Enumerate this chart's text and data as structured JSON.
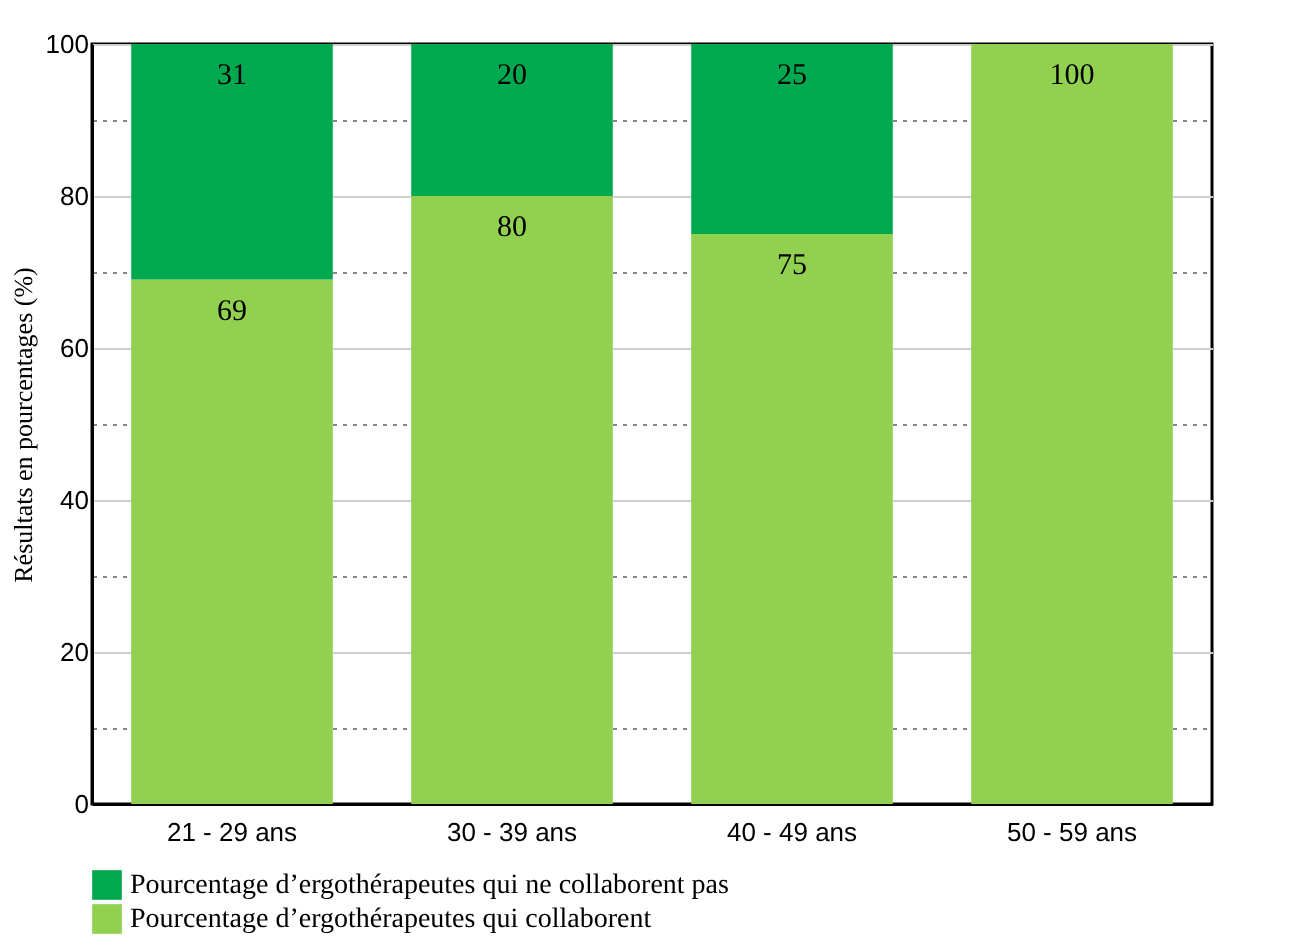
{
  "chart_data": {
    "type": "bar",
    "stacked": true,
    "ylabel": "Résultats en pourcentages (%)",
    "categories": [
      "21 - 29 ans",
      "30 - 39 ans",
      "40 - 49 ans",
      "50 - 59 ans"
    ],
    "series": [
      {
        "name": "Pourcentage d’ergothérapeutes qui collaborent",
        "color": "#92d050",
        "values": [
          69,
          80,
          75,
          100
        ],
        "value_labels": [
          "69",
          "80",
          "75",
          "100"
        ]
      },
      {
        "name": "Pourcentage d’ergothérapeutes qui ne collaborent pas",
        "color": "#00a94f",
        "values": [
          31,
          20,
          25,
          0
        ],
        "value_labels": [
          "31",
          "20",
          "25",
          null
        ]
      }
    ],
    "ylim": [
      0,
      100
    ],
    "yticks": [
      0,
      {
        "value": 10,
        "label": null
      },
      20,
      {
        "value": 30,
        "label": null
      },
      40,
      {
        "value": 50,
        "label": null
      },
      60,
      {
        "value": 70,
        "label": null
      },
      80,
      {
        "value": 90,
        "label": null
      },
      100
    ],
    "grid": true,
    "legend": "bottom"
  }
}
